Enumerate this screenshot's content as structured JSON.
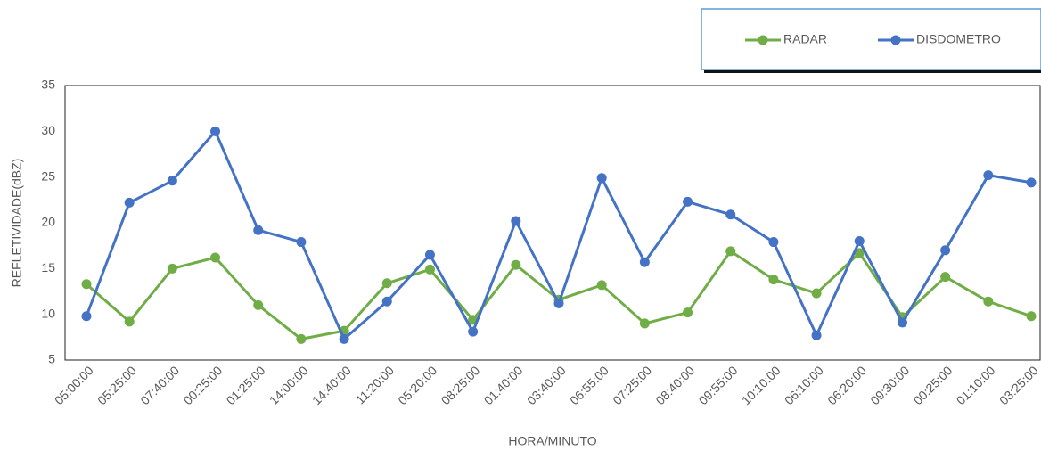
{
  "chart_data": {
    "type": "line",
    "x_label": "HORA/MINUTO",
    "y_label": "REFLETIVIDADE(dBZ)",
    "categories": [
      "05:00:00",
      "05:25:00",
      "07:40:00",
      "00:25:00",
      "01:25:00",
      "14:00:00",
      "14:40:00",
      "11:20:00",
      "05:20:00",
      "08:25:00",
      "01:40:00",
      "03:40:00",
      "06:55:00",
      "07:25:00",
      "08:40:00",
      "09:55:00",
      "10:10:00",
      "06:10:00",
      "06:20:00",
      "09:30:00",
      "00:25:00",
      "01:10:00",
      "03:25:00"
    ],
    "series": [
      {
        "name": "RADAR",
        "color": "#70ad47",
        "values": [
          13.3,
          9.2,
          15.0,
          16.2,
          11.0,
          7.3,
          8.2,
          13.4,
          14.9,
          9.4,
          15.4,
          11.6,
          13.2,
          9.0,
          10.2,
          16.9,
          13.8,
          12.3,
          16.7,
          9.7,
          14.1,
          11.4,
          9.8
        ]
      },
      {
        "name": "DISDOMETRO",
        "color": "#4472c4",
        "values": [
          9.8,
          22.2,
          24.6,
          30.0,
          19.2,
          17.9,
          7.3,
          11.4,
          16.5,
          8.1,
          20.2,
          11.2,
          24.9,
          15.7,
          22.3,
          20.9,
          17.9,
          7.7,
          18.0,
          9.1,
          17.0,
          25.2,
          24.4
        ]
      }
    ],
    "ylim": [
      5,
      35
    ],
    "yticks": [
      5,
      10,
      15,
      20,
      25,
      30,
      35
    ],
    "grid": false,
    "legend": "top-right"
  }
}
